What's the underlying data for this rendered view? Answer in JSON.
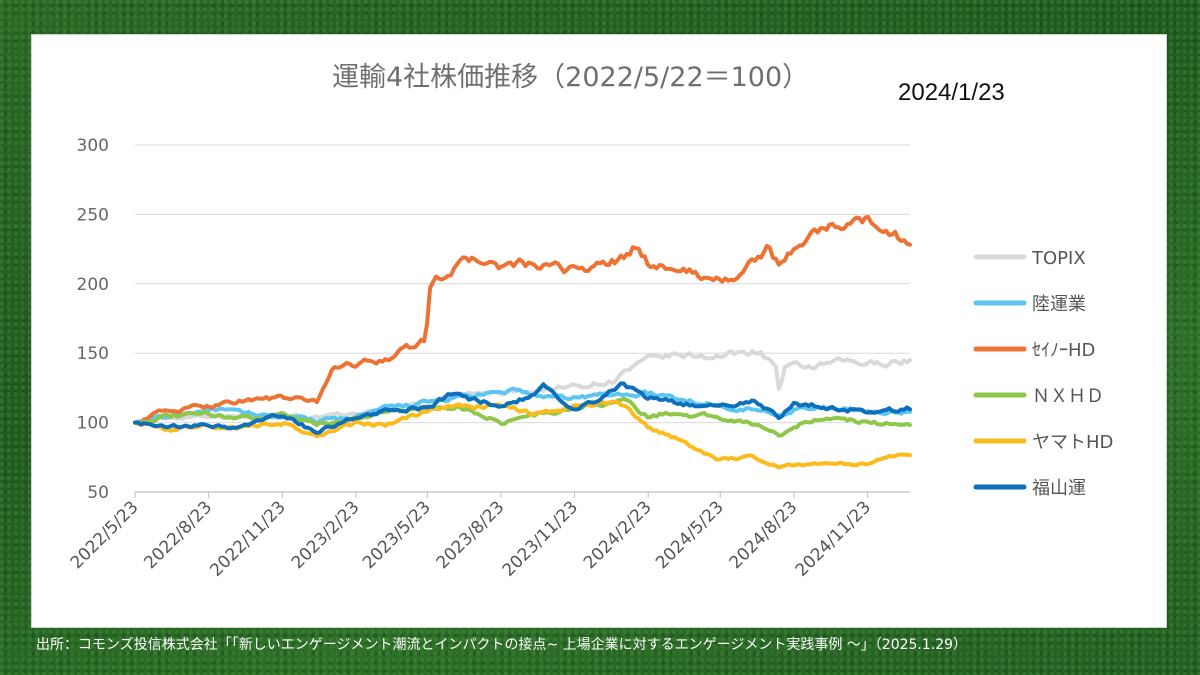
{
  "source_note": "出所：コモンズ投信株式会社「「新しいエンゲージメント潮流とインパクトの接点~ 上場企業に対するエンゲージメント実践事例 ～」（2025.1.29）",
  "date_annotation": "2024/1/23",
  "chart_data": {
    "type": "line",
    "title": "運輸4社株価推移（2022/5/22＝100）",
    "xlabel": "",
    "ylabel": "",
    "ylim": [
      50,
      300
    ],
    "yticks": [
      50,
      100,
      150,
      200,
      250,
      300
    ],
    "xlim": [
      "2022-05-23",
      "2025-01-15"
    ],
    "xtick_labels": [
      "2022/5/23",
      "2022/8/23",
      "2022/11/23",
      "2023/2/23",
      "2023/5/23",
      "2023/8/23",
      "2023/11/23",
      "2024/2/23",
      "2024/5/23",
      "2024/8/23",
      "2024/11/23"
    ],
    "xtick_dates": [
      "2022-05-23",
      "2022-08-23",
      "2022-11-23",
      "2023-02-23",
      "2023-05-23",
      "2023-08-23",
      "2023-11-23",
      "2024-02-23",
      "2024-05-23",
      "2024-08-23",
      "2024-11-23"
    ],
    "grid": "horizontal",
    "legend_position": "right",
    "series": [
      {
        "name": "TOPIX",
        "color": "#d9d9d9",
        "points": [
          [
            "2022-05-23",
            100
          ],
          [
            "2022-07-01",
            103
          ],
          [
            "2022-08-23",
            106
          ],
          [
            "2022-10-01",
            104
          ],
          [
            "2022-11-23",
            107
          ],
          [
            "2023-01-05",
            103
          ],
          [
            "2023-02-23",
            106
          ],
          [
            "2023-04-01",
            109
          ],
          [
            "2023-05-23",
            116
          ],
          [
            "2023-07-01",
            120
          ],
          [
            "2023-08-23",
            121
          ],
          [
            "2023-10-01",
            123
          ],
          [
            "2023-11-23",
            126
          ],
          [
            "2024-01-10",
            130
          ],
          [
            "2024-01-23",
            136
          ],
          [
            "2024-02-23",
            145
          ],
          [
            "2024-03-20",
            148
          ],
          [
            "2024-05-23",
            148
          ],
          [
            "2024-07-10",
            152
          ],
          [
            "2024-08-02",
            140
          ],
          [
            "2024-08-05",
            118
          ],
          [
            "2024-08-10",
            138
          ],
          [
            "2024-08-23",
            140
          ],
          [
            "2024-09-20",
            140
          ],
          [
            "2024-10-20",
            144
          ],
          [
            "2024-11-23",
            142
          ],
          [
            "2025-01-15",
            145
          ]
        ]
      },
      {
        "name": "陸運業",
        "color": "#5cc6f2",
        "points": [
          [
            "2022-05-23",
            100
          ],
          [
            "2022-07-01",
            104
          ],
          [
            "2022-08-23",
            110
          ],
          [
            "2022-10-01",
            107
          ],
          [
            "2022-11-23",
            104
          ],
          [
            "2023-01-05",
            101
          ],
          [
            "2023-02-23",
            104
          ],
          [
            "2023-04-01",
            110
          ],
          [
            "2023-05-23",
            114
          ],
          [
            "2023-07-01",
            118
          ],
          [
            "2023-08-23",
            121
          ],
          [
            "2023-09-15",
            124
          ],
          [
            "2023-10-15",
            117
          ],
          [
            "2023-11-23",
            118
          ],
          [
            "2024-01-01",
            120
          ],
          [
            "2024-01-23",
            120
          ],
          [
            "2024-02-23",
            121
          ],
          [
            "2024-04-01",
            117
          ],
          [
            "2024-05-23",
            112
          ],
          [
            "2024-07-01",
            110
          ],
          [
            "2024-08-05",
            106
          ],
          [
            "2024-08-23",
            110
          ],
          [
            "2024-10-01",
            110
          ],
          [
            "2024-11-23",
            108
          ],
          [
            "2025-01-15",
            107
          ]
        ]
      },
      {
        "name": "ｾｲﾉｰHD",
        "color": "#ed7233",
        "points": [
          [
            "2022-05-23",
            100
          ],
          [
            "2022-06-20",
            107
          ],
          [
            "2022-08-23",
            112
          ],
          [
            "2022-10-01",
            116
          ],
          [
            "2022-11-23",
            118
          ],
          [
            "2023-01-05",
            115
          ],
          [
            "2023-01-25",
            140
          ],
          [
            "2023-02-23",
            142
          ],
          [
            "2023-04-01",
            146
          ],
          [
            "2023-05-15",
            158
          ],
          [
            "2023-05-22",
            160
          ],
          [
            "2023-05-25",
            198
          ],
          [
            "2023-06-20",
            210
          ],
          [
            "2023-07-20",
            218
          ],
          [
            "2023-08-23",
            212
          ],
          [
            "2023-09-20",
            214
          ],
          [
            "2023-10-10",
            212
          ],
          [
            "2023-11-23",
            210
          ],
          [
            "2024-01-01",
            214
          ],
          [
            "2024-01-23",
            218
          ],
          [
            "2024-02-10",
            228
          ],
          [
            "2024-02-23",
            215
          ],
          [
            "2024-03-20",
            212
          ],
          [
            "2024-05-23",
            202
          ],
          [
            "2024-06-20",
            208
          ],
          [
            "2024-07-20",
            225
          ],
          [
            "2024-08-05",
            212
          ],
          [
            "2024-08-23",
            226
          ],
          [
            "2024-09-20",
            238
          ],
          [
            "2024-10-20",
            242
          ],
          [
            "2024-11-23",
            246
          ],
          [
            "2024-12-20",
            238
          ],
          [
            "2025-01-15",
            229
          ]
        ]
      },
      {
        "name": "ＮＸＨＤ",
        "color": "#8fc74a",
        "points": [
          [
            "2022-05-23",
            100
          ],
          [
            "2022-07-01",
            104
          ],
          [
            "2022-08-23",
            106
          ],
          [
            "2022-10-01",
            103
          ],
          [
            "2022-11-23",
            106
          ],
          [
            "2023-01-05",
            99
          ],
          [
            "2023-02-23",
            103
          ],
          [
            "2023-04-01",
            108
          ],
          [
            "2023-05-23",
            110
          ],
          [
            "2023-07-01",
            112
          ],
          [
            "2023-08-23",
            100
          ],
          [
            "2023-10-01",
            105
          ],
          [
            "2023-11-23",
            110
          ],
          [
            "2024-01-01",
            114
          ],
          [
            "2024-01-23",
            116
          ],
          [
            "2024-02-23",
            104
          ],
          [
            "2024-03-20",
            107
          ],
          [
            "2024-05-23",
            104
          ],
          [
            "2024-07-01",
            100
          ],
          [
            "2024-08-05",
            90
          ],
          [
            "2024-08-23",
            98
          ],
          [
            "2024-10-01",
            104
          ],
          [
            "2024-11-23",
            100
          ],
          [
            "2025-01-15",
            98
          ]
        ]
      },
      {
        "name": "ヤマトHD",
        "color": "#fbbb1c",
        "points": [
          [
            "2022-05-23",
            100
          ],
          [
            "2022-07-01",
            95
          ],
          [
            "2022-08-23",
            98
          ],
          [
            "2022-10-01",
            96
          ],
          [
            "2022-11-23",
            100
          ],
          [
            "2023-01-05",
            90
          ],
          [
            "2023-02-23",
            100
          ],
          [
            "2023-04-01",
            98
          ],
          [
            "2023-05-23",
            108
          ],
          [
            "2023-07-01",
            112
          ],
          [
            "2023-08-23",
            112
          ],
          [
            "2023-10-01",
            106
          ],
          [
            "2023-11-23",
            112
          ],
          [
            "2024-01-01",
            115
          ],
          [
            "2024-01-23",
            112
          ],
          [
            "2024-02-23",
            96
          ],
          [
            "2024-04-01",
            88
          ],
          [
            "2024-05-10",
            76
          ],
          [
            "2024-05-23",
            73
          ],
          [
            "2024-07-01",
            76
          ],
          [
            "2024-08-05",
            68
          ],
          [
            "2024-08-23",
            70
          ],
          [
            "2024-10-01",
            70
          ],
          [
            "2024-11-23",
            70
          ],
          [
            "2024-12-20",
            76
          ],
          [
            "2025-01-15",
            77
          ]
        ]
      },
      {
        "name": "福山運",
        "color": "#0e6fbd",
        "points": [
          [
            "2022-05-23",
            100
          ],
          [
            "2022-07-01",
            96
          ],
          [
            "2022-08-23",
            98
          ],
          [
            "2022-10-01",
            96
          ],
          [
            "2022-11-23",
            106
          ],
          [
            "2023-01-05",
            93
          ],
          [
            "2023-02-23",
            104
          ],
          [
            "2023-04-01",
            108
          ],
          [
            "2023-05-23",
            110
          ],
          [
            "2023-06-20",
            120
          ],
          [
            "2023-08-23",
            112
          ],
          [
            "2023-09-20",
            118
          ],
          [
            "2023-10-15",
            126
          ],
          [
            "2023-11-23",
            108
          ],
          [
            "2024-01-01",
            120
          ],
          [
            "2024-01-23",
            128
          ],
          [
            "2024-02-23",
            118
          ],
          [
            "2024-04-01",
            114
          ],
          [
            "2024-05-23",
            112
          ],
          [
            "2024-07-01",
            116
          ],
          [
            "2024-08-05",
            104
          ],
          [
            "2024-08-23",
            114
          ],
          [
            "2024-10-01",
            112
          ],
          [
            "2024-11-23",
            108
          ],
          [
            "2025-01-15",
            110
          ]
        ]
      }
    ]
  }
}
